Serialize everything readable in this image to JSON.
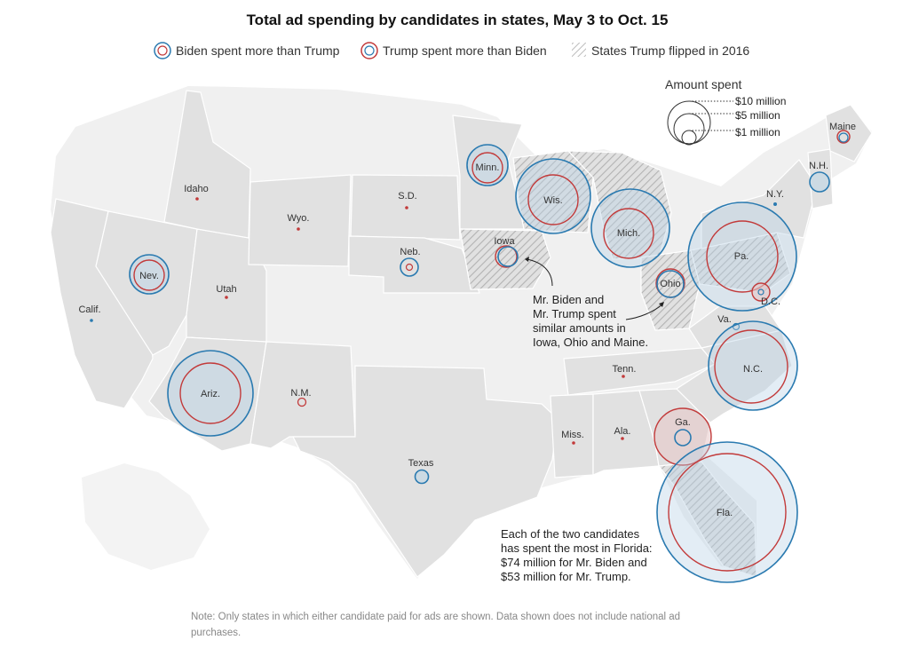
{
  "title": "Total ad spending by candidates in states, May 3 to Oct. 15",
  "legend": {
    "biden_more": "Biden spent more than Trump",
    "trump_more": "Trump spent more than Biden",
    "flipped": "States Trump flipped in 2016"
  },
  "size_legend": {
    "title": "Amount spent",
    "ten": "$10 million",
    "five": "$5 million",
    "one": "$1 million"
  },
  "states": {
    "calif": "Calif.",
    "nev": "Nev.",
    "utah": "Utah",
    "ariz": "Ariz.",
    "idaho": "Idaho",
    "wyo": "Wyo.",
    "nm": "N.M.",
    "sd": "S.D.",
    "neb": "Neb.",
    "texas": "Texas",
    "minn": "Minn.",
    "iowa": "Iowa",
    "wis": "Wis.",
    "mich": "Mich.",
    "ohio": "Ohio",
    "tenn": "Tenn.",
    "miss": "Miss.",
    "ala": "Ala.",
    "ga": "Ga.",
    "fla": "Fla.",
    "nc": "N.C.",
    "va": "Va.",
    "dc": "D.C.",
    "pa": "Pa.",
    "ny": "N.Y.",
    "nh": "N.H.",
    "maine": "Maine"
  },
  "annotations": {
    "similar": [
      "Mr. Biden and",
      "Mr. Trump spent",
      "similar amounts in",
      "Iowa, Ohio and Maine."
    ],
    "florida": [
      "Each of the two candidates",
      "has spent the most in Florida:",
      "$74 million for Mr. Biden and",
      "$53 million for Mr. Trump."
    ]
  },
  "footnote": [
    "Note: Only states in which either candidate paid for ads are shown. Data shown does not include national ad",
    "purchases."
  ],
  "colors": {
    "biden": "#2a7ab0",
    "trump": "#c23a3a",
    "land": "#e1e1e1",
    "land_light": "#f0f0f0",
    "border": "#ffffff",
    "hatch": "#b9b9b9"
  }
}
